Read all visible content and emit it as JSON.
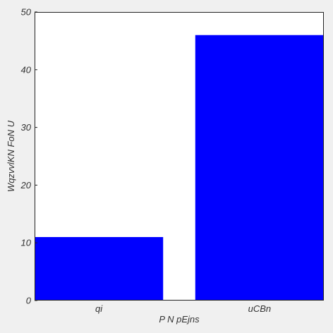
{
  "chart_data": {
    "type": "bar",
    "title": "",
    "xlabel": "P N pEjns",
    "ylabel": "WqzvvlKN FoN U",
    "categories": [
      "qi",
      "uCBn"
    ],
    "values": [
      11,
      46
    ],
    "ylim": [
      0,
      50
    ],
    "yticks": [
      0,
      10,
      20,
      30,
      40,
      50
    ],
    "grid": false,
    "legend": "none"
  },
  "colors": {
    "bar": "#0000ff",
    "background": "#f0f0f0",
    "plot_area": "#ffffff",
    "axis": "#222222",
    "text": "#333333"
  }
}
